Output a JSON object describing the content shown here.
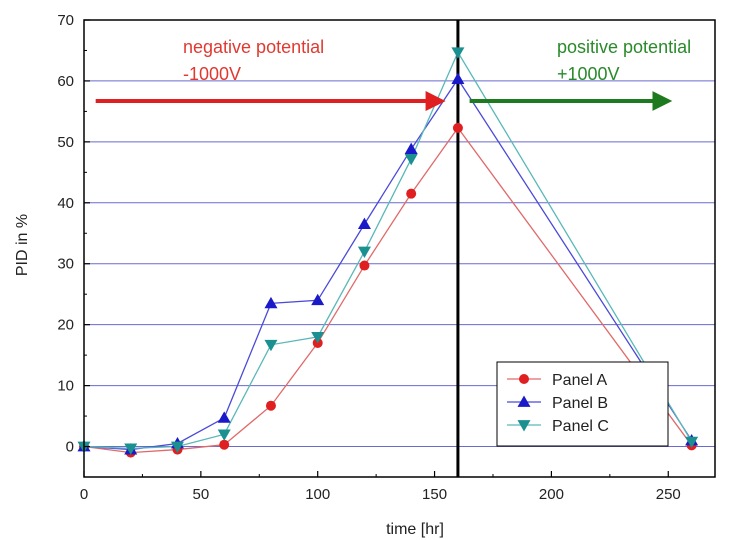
{
  "chart_data": {
    "type": "line",
    "xlabel": "time [hr]",
    "ylabel": "PID in %",
    "xlim": [
      0,
      270
    ],
    "ylim": [
      -5,
      70
    ],
    "x_ticks": [
      0,
      50,
      100,
      150,
      200,
      250
    ],
    "y_ticks": [
      0,
      10,
      20,
      30,
      40,
      50,
      60,
      70
    ],
    "grid": "horizontal",
    "legend_position": "bottom-right",
    "series": [
      {
        "name": "Panel A",
        "marker": "circle",
        "color": "#e02020",
        "line_color": "#e06a6a",
        "x": [
          0,
          20,
          40,
          60,
          80,
          100,
          120,
          140,
          160,
          260
        ],
        "y": [
          0,
          -1,
          -0.5,
          0.3,
          6.7,
          17,
          29.7,
          41.5,
          52.3,
          0.2
        ]
      },
      {
        "name": "Panel B",
        "marker": "triangle-up",
        "color": "#1a1ac8",
        "line_color": "#4a4ad8",
        "x": [
          0,
          20,
          40,
          60,
          80,
          100,
          120,
          140,
          160,
          260
        ],
        "y": [
          0,
          -0.5,
          0.5,
          4.7,
          23.5,
          24,
          36.5,
          48.8,
          60.3,
          1
        ]
      },
      {
        "name": "Panel C",
        "marker": "triangle-down",
        "color": "#1a9090",
        "line_color": "#5ab8b8",
        "x": [
          0,
          20,
          40,
          60,
          80,
          100,
          120,
          140,
          160,
          260
        ],
        "y": [
          0,
          -0.3,
          0,
          2,
          16.7,
          18,
          32,
          47.2,
          64.7,
          0.8
        ]
      }
    ],
    "divider_x": 160,
    "annotations": [
      {
        "id": "neg",
        "line1": "negative potential",
        "line2": "-1000V",
        "color": "#e03a30"
      },
      {
        "id": "pos",
        "line1": "positive potential",
        "line2": "+1000V",
        "color": "#2a8a2a"
      }
    ],
    "arrows": [
      {
        "id": "neg-arrow",
        "x_from": 5,
        "x_to": 153,
        "y": 56.7,
        "color": "#e02020"
      },
      {
        "id": "pos-arrow",
        "x_from": 165,
        "x_to": 250,
        "y": 56.7,
        "color": "#1e7a1e"
      }
    ]
  }
}
